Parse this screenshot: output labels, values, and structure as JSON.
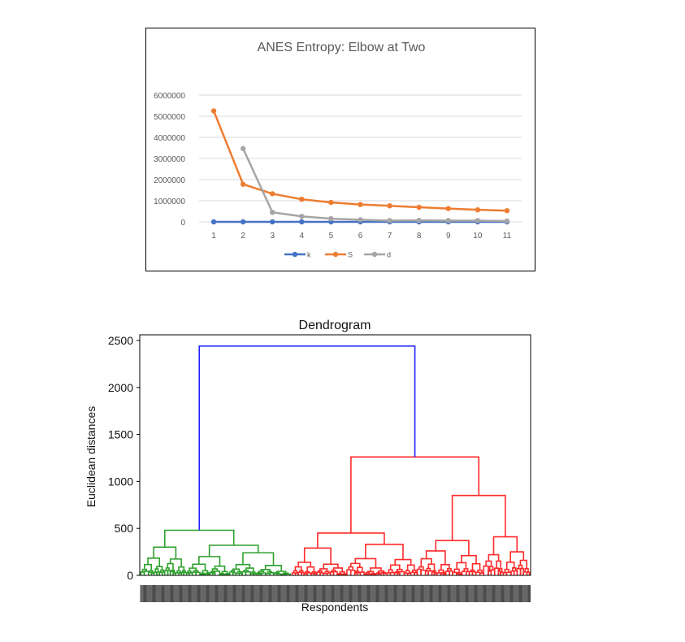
{
  "chart_data": [
    {
      "type": "line",
      "title": "ANES Entropy: Elbow at Two",
      "xlabel": "",
      "ylabel": "",
      "categories": [
        "1",
        "2",
        "3",
        "4",
        "5",
        "6",
        "7",
        "8",
        "9",
        "10",
        "11"
      ],
      "ylim": [
        0,
        6000000
      ],
      "yticks": [
        "0",
        "1000000",
        "2000000",
        "3000000",
        "4000000",
        "5000000",
        "6000000"
      ],
      "grid": true,
      "legend_position": "bottom",
      "series": [
        {
          "name": "k",
          "color": "#4472C4",
          "values": [
            1,
            2,
            3,
            4,
            5,
            6,
            7,
            8,
            9,
            10,
            11
          ]
        },
        {
          "name": "S",
          "color": "#ED7D31",
          "values": [
            5250000,
            1780000,
            1330000,
            1070000,
            920000,
            820000,
            760000,
            690000,
            630000,
            570000,
            530000
          ]
        },
        {
          "name": "d",
          "color": "#A5A5A5",
          "values": [
            null,
            3470000,
            450000,
            260000,
            150000,
            100000,
            60000,
            70000,
            60000,
            60000,
            40000
          ]
        }
      ]
    },
    {
      "type": "dendrogram",
      "title": "Dendrogram",
      "xlabel": "Respondents",
      "ylabel": "Euclidean distances",
      "ylim": [
        0,
        2560
      ],
      "yticks": [
        "0",
        "500",
        "1000",
        "1500",
        "2000",
        "2500"
      ],
      "cluster_colors": [
        "#2ca02c",
        "#ff2a2a",
        "#2020ff"
      ],
      "top_merge_height": 2440,
      "cluster_merge_heights": {
        "green": 480,
        "red": 1260,
        "red_left": 450,
        "red_right": 850
      }
    }
  ]
}
